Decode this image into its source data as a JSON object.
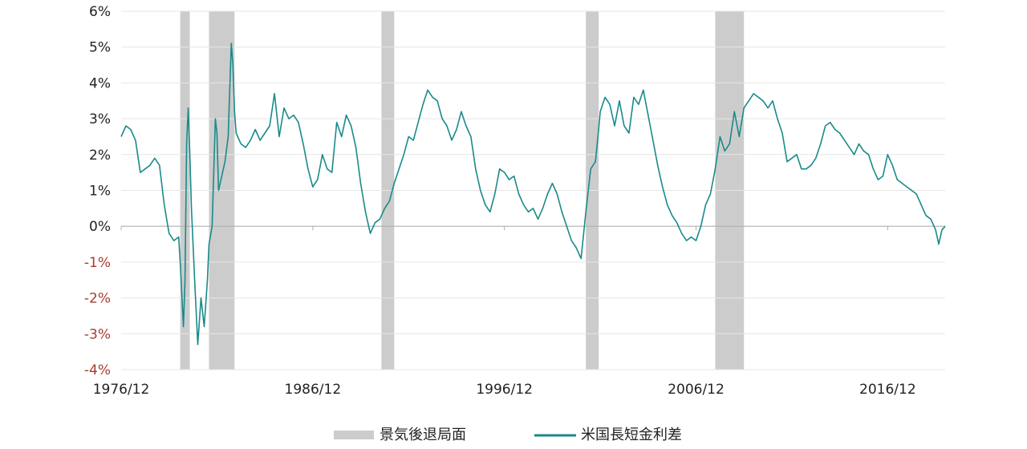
{
  "chart_data": {
    "type": "line",
    "x_axis": {
      "type": "date",
      "range": [
        "1976-12",
        "2019-12"
      ],
      "tick_labels": [
        {
          "label": "1976/12",
          "x": "1976-12"
        },
        {
          "label": "1986/12",
          "x": "1986-12"
        },
        {
          "label": "1996/12",
          "x": "1996-12"
        },
        {
          "label": "2006/12",
          "x": "2006-12"
        },
        {
          "label": "2016/12",
          "x": "2016-12"
        }
      ]
    },
    "y_axis": {
      "unit": "%",
      "range": [
        -4,
        6
      ],
      "tick_labels": [
        {
          "label": "6%",
          "value": 6
        },
        {
          "label": "5%",
          "value": 5
        },
        {
          "label": "4%",
          "value": 4
        },
        {
          "label": "3%",
          "value": 3
        },
        {
          "label": "2%",
          "value": 2
        },
        {
          "label": "1%",
          "value": 1
        },
        {
          "label": "0%",
          "value": 0
        },
        {
          "label": "-1%",
          "value": -1
        },
        {
          "label": "-2%",
          "value": -2
        },
        {
          "label": "-3%",
          "value": -3
        },
        {
          "label": "-4%",
          "value": -4
        }
      ],
      "positive_tick_color": "#222222",
      "negative_tick_color": "#a93a32"
    },
    "grid": "horizontal",
    "legend_position": "bottom-center",
    "recessions": {
      "name": "景気後退局面",
      "color": "#cccccc",
      "periods": [
        {
          "start": "1980-01",
          "end": "1980-07"
        },
        {
          "start": "1981-07",
          "end": "1982-11"
        },
        {
          "start": "1990-07",
          "end": "1991-03"
        },
        {
          "start": "2001-03",
          "end": "2001-11"
        },
        {
          "start": "2007-12",
          "end": "2009-06"
        }
      ]
    },
    "series": [
      {
        "name": "米国長短金利差",
        "color": "#1a8a8a",
        "points": [
          [
            "1976-12",
            2.5
          ],
          [
            "1977-03",
            2.8
          ],
          [
            "1977-06",
            2.7
          ],
          [
            "1977-09",
            2.4
          ],
          [
            "1977-12",
            1.5
          ],
          [
            "1978-03",
            1.6
          ],
          [
            "1978-06",
            1.7
          ],
          [
            "1978-09",
            1.9
          ],
          [
            "1978-12",
            1.7
          ],
          [
            "1979-03",
            0.6
          ],
          [
            "1979-06",
            -0.2
          ],
          [
            "1979-09",
            -0.4
          ],
          [
            "1979-12",
            -0.3
          ],
          [
            "1980-01",
            -1.0
          ],
          [
            "1980-03",
            -2.8
          ],
          [
            "1980-04",
            -1.5
          ],
          [
            "1980-05",
            2.3
          ],
          [
            "1980-06",
            3.3
          ],
          [
            "1980-07",
            2.0
          ],
          [
            "1980-08",
            0.5
          ],
          [
            "1980-10",
            -1.5
          ],
          [
            "1980-12",
            -3.3
          ],
          [
            "1981-02",
            -2.0
          ],
          [
            "1981-04",
            -2.8
          ],
          [
            "1981-06",
            -1.5
          ],
          [
            "1981-07",
            -0.5
          ],
          [
            "1981-09",
            0.0
          ],
          [
            "1981-10",
            1.5
          ],
          [
            "1981-11",
            3.0
          ],
          [
            "1981-12",
            2.6
          ],
          [
            "1982-01",
            1.0
          ],
          [
            "1982-03",
            1.4
          ],
          [
            "1982-05",
            1.8
          ],
          [
            "1982-07",
            2.5
          ],
          [
            "1982-08",
            3.8
          ],
          [
            "1982-09",
            5.1
          ],
          [
            "1982-10",
            4.5
          ],
          [
            "1982-11",
            3.2
          ],
          [
            "1982-12",
            2.6
          ],
          [
            "1983-03",
            2.3
          ],
          [
            "1983-06",
            2.2
          ],
          [
            "1983-09",
            2.4
          ],
          [
            "1983-12",
            2.7
          ],
          [
            "1984-03",
            2.4
          ],
          [
            "1984-06",
            2.6
          ],
          [
            "1984-09",
            2.8
          ],
          [
            "1984-12",
            3.7
          ],
          [
            "1985-03",
            2.5
          ],
          [
            "1985-06",
            3.3
          ],
          [
            "1985-09",
            3.0
          ],
          [
            "1985-12",
            3.1
          ],
          [
            "1986-03",
            2.9
          ],
          [
            "1986-06",
            2.3
          ],
          [
            "1986-09",
            1.6
          ],
          [
            "1986-12",
            1.1
          ],
          [
            "1987-03",
            1.3
          ],
          [
            "1987-06",
            2.0
          ],
          [
            "1987-09",
            1.6
          ],
          [
            "1987-12",
            1.5
          ],
          [
            "1988-03",
            2.9
          ],
          [
            "1988-06",
            2.5
          ],
          [
            "1988-09",
            3.1
          ],
          [
            "1988-12",
            2.8
          ],
          [
            "1989-03",
            2.2
          ],
          [
            "1989-06",
            1.2
          ],
          [
            "1989-09",
            0.4
          ],
          [
            "1989-12",
            -0.2
          ],
          [
            "1990-03",
            0.1
          ],
          [
            "1990-06",
            0.2
          ],
          [
            "1990-09",
            0.5
          ],
          [
            "1990-12",
            0.7
          ],
          [
            "1991-03",
            1.2
          ],
          [
            "1991-06",
            1.6
          ],
          [
            "1991-09",
            2.0
          ],
          [
            "1991-12",
            2.5
          ],
          [
            "1992-03",
            2.4
          ],
          [
            "1992-06",
            2.9
          ],
          [
            "1992-09",
            3.4
          ],
          [
            "1992-12",
            3.8
          ],
          [
            "1993-03",
            3.6
          ],
          [
            "1993-06",
            3.5
          ],
          [
            "1993-09",
            3.0
          ],
          [
            "1993-12",
            2.8
          ],
          [
            "1994-03",
            2.4
          ],
          [
            "1994-06",
            2.7
          ],
          [
            "1994-09",
            3.2
          ],
          [
            "1994-12",
            2.8
          ],
          [
            "1995-03",
            2.5
          ],
          [
            "1995-06",
            1.6
          ],
          [
            "1995-09",
            1.0
          ],
          [
            "1995-12",
            0.6
          ],
          [
            "1996-03",
            0.4
          ],
          [
            "1996-06",
            0.9
          ],
          [
            "1996-09",
            1.6
          ],
          [
            "1996-12",
            1.5
          ],
          [
            "1997-03",
            1.3
          ],
          [
            "1997-06",
            1.4
          ],
          [
            "1997-09",
            0.9
          ],
          [
            "1997-12",
            0.6
          ],
          [
            "1998-03",
            0.4
          ],
          [
            "1998-06",
            0.5
          ],
          [
            "1998-09",
            0.2
          ],
          [
            "1998-12",
            0.5
          ],
          [
            "1999-03",
            0.9
          ],
          [
            "1999-06",
            1.2
          ],
          [
            "1999-09",
            0.9
          ],
          [
            "1999-12",
            0.4
          ],
          [
            "2000-03",
            0.0
          ],
          [
            "2000-06",
            -0.4
          ],
          [
            "2000-09",
            -0.6
          ],
          [
            "2000-12",
            -0.9
          ],
          [
            "2001-03",
            0.4
          ],
          [
            "2001-06",
            1.6
          ],
          [
            "2001-09",
            1.8
          ],
          [
            "2001-11",
            2.7
          ],
          [
            "2001-12",
            3.2
          ],
          [
            "2002-03",
            3.6
          ],
          [
            "2002-06",
            3.4
          ],
          [
            "2002-09",
            2.8
          ],
          [
            "2002-12",
            3.5
          ],
          [
            "2003-03",
            2.8
          ],
          [
            "2003-06",
            2.6
          ],
          [
            "2003-09",
            3.6
          ],
          [
            "2003-12",
            3.4
          ],
          [
            "2004-03",
            3.8
          ],
          [
            "2004-06",
            3.1
          ],
          [
            "2004-09",
            2.4
          ],
          [
            "2004-12",
            1.7
          ],
          [
            "2005-03",
            1.1
          ],
          [
            "2005-06",
            0.6
          ],
          [
            "2005-09",
            0.3
          ],
          [
            "2005-12",
            0.1
          ],
          [
            "2006-03",
            -0.2
          ],
          [
            "2006-06",
            -0.4
          ],
          [
            "2006-09",
            -0.3
          ],
          [
            "2006-12",
            -0.4
          ],
          [
            "2007-03",
            0.0
          ],
          [
            "2007-06",
            0.6
          ],
          [
            "2007-09",
            0.9
          ],
          [
            "2007-12",
            1.6
          ],
          [
            "2008-03",
            2.5
          ],
          [
            "2008-06",
            2.1
          ],
          [
            "2008-09",
            2.3
          ],
          [
            "2008-12",
            3.2
          ],
          [
            "2009-03",
            2.5
          ],
          [
            "2009-06",
            3.3
          ],
          [
            "2009-09",
            3.5
          ],
          [
            "2009-12",
            3.7
          ],
          [
            "2010-03",
            3.6
          ],
          [
            "2010-06",
            3.5
          ],
          [
            "2010-09",
            3.3
          ],
          [
            "2010-12",
            3.5
          ],
          [
            "2011-03",
            3.0
          ],
          [
            "2011-06",
            2.6
          ],
          [
            "2011-09",
            1.8
          ],
          [
            "2011-12",
            1.9
          ],
          [
            "2012-03",
            2.0
          ],
          [
            "2012-06",
            1.6
          ],
          [
            "2012-09",
            1.6
          ],
          [
            "2012-12",
            1.7
          ],
          [
            "2013-03",
            1.9
          ],
          [
            "2013-06",
            2.3
          ],
          [
            "2013-09",
            2.8
          ],
          [
            "2013-12",
            2.9
          ],
          [
            "2014-03",
            2.7
          ],
          [
            "2014-06",
            2.6
          ],
          [
            "2014-09",
            2.4
          ],
          [
            "2014-12",
            2.2
          ],
          [
            "2015-03",
            2.0
          ],
          [
            "2015-06",
            2.3
          ],
          [
            "2015-09",
            2.1
          ],
          [
            "2015-12",
            2.0
          ],
          [
            "2016-03",
            1.6
          ],
          [
            "2016-06",
            1.3
          ],
          [
            "2016-09",
            1.4
          ],
          [
            "2016-12",
            2.0
          ],
          [
            "2017-03",
            1.7
          ],
          [
            "2017-06",
            1.3
          ],
          [
            "2017-09",
            1.2
          ],
          [
            "2017-12",
            1.1
          ],
          [
            "2018-03",
            1.0
          ],
          [
            "2018-06",
            0.9
          ],
          [
            "2018-09",
            0.6
          ],
          [
            "2018-12",
            0.3
          ],
          [
            "2019-03",
            0.2
          ],
          [
            "2019-06",
            -0.1
          ],
          [
            "2019-08",
            -0.5
          ],
          [
            "2019-10",
            -0.1
          ],
          [
            "2019-12",
            0.0
          ]
        ]
      }
    ]
  }
}
